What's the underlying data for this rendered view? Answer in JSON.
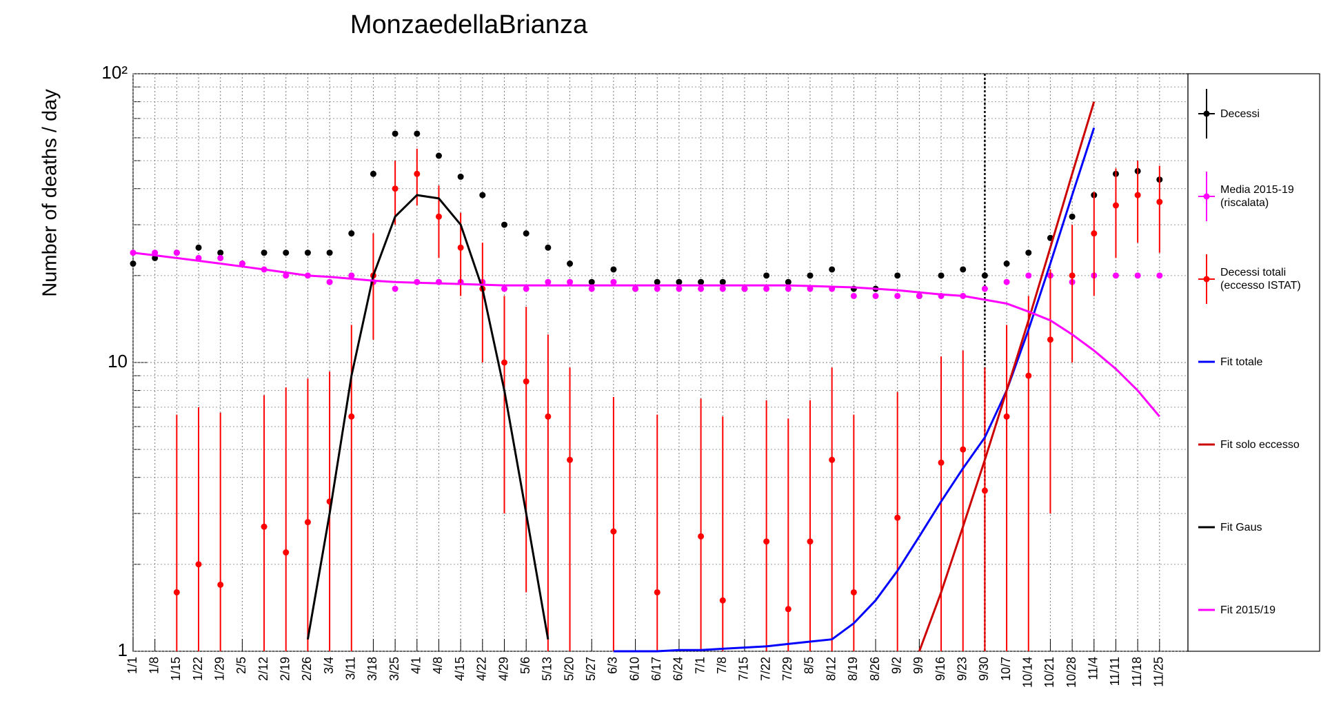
{
  "chart_data": {
    "type": "line",
    "title": "MonzaedellaBrianza",
    "y_label": "Number of deaths / day",
    "y_log": true,
    "grid": true,
    "ylim": [
      1,
      100
    ],
    "yticks": [
      1,
      10,
      {
        "value": 100,
        "label": "10²"
      }
    ],
    "yminorticks": [
      2,
      3,
      4,
      5,
      6,
      7,
      8,
      9,
      20,
      30,
      40,
      50,
      60,
      70,
      80,
      90
    ],
    "marker_line": "9/30",
    "legend": "right",
    "categories": [
      "1/1",
      "1/8",
      "1/15",
      "1/22",
      "1/29",
      "2/5",
      "2/12",
      "2/19",
      "2/26",
      "3/4",
      "3/11",
      "3/18",
      "3/25",
      "4/1",
      "4/8",
      "4/15",
      "4/22",
      "4/29",
      "5/6",
      "5/13",
      "5/20",
      "5/27",
      "6/3",
      "6/10",
      "6/17",
      "6/24",
      "7/1",
      "7/8",
      "7/15",
      "7/22",
      "7/29",
      "8/5",
      "8/12",
      "8/19",
      "8/26",
      "9/2",
      "9/9",
      "9/16",
      "9/23",
      "9/30",
      "10/7",
      "10/14",
      "10/21",
      "10/28",
      "11/4",
      "11/11",
      "11/18",
      "11/25"
    ],
    "series": [
      {
        "name": "Decessi",
        "color": "#000000",
        "style": "markers",
        "values": [
          22,
          23,
          24,
          25,
          24,
          22,
          24,
          24,
          24,
          24,
          28,
          45,
          62,
          62,
          52,
          44,
          38,
          30,
          28,
          25,
          22,
          19,
          21,
          18,
          19,
          19,
          19,
          19,
          18,
          20,
          19,
          20,
          21,
          18,
          18,
          20,
          17,
          20,
          21,
          20,
          22,
          24,
          27,
          32,
          38,
          45,
          46,
          43
        ]
      },
      {
        "name": "Media 2015-19 (riscalata)",
        "color": "#ff00ff",
        "style": "markers",
        "values": [
          24,
          24,
          24,
          23,
          23,
          22,
          21,
          20,
          20,
          19,
          20,
          19,
          18,
          19,
          19,
          19,
          19,
          18,
          18,
          19,
          19,
          18,
          19,
          18,
          18,
          18,
          18,
          18,
          18,
          18,
          18,
          18,
          18,
          17,
          17,
          17,
          17,
          17,
          17,
          18,
          19,
          20,
          20,
          19,
          20,
          20,
          20,
          20
        ]
      },
      {
        "name": "Decessi totali (eccesso ISTAT)",
        "color": "#ff0000",
        "style": "markers",
        "values": [
          null,
          null,
          1.6,
          2.0,
          1.7,
          null,
          2.7,
          2.2,
          2.8,
          3.3,
          6.5,
          20,
          40,
          45,
          32,
          25,
          18,
          10,
          8.6,
          6.5,
          4.6,
          null,
          2.6,
          null,
          1.6,
          null,
          2.5,
          1.5,
          null,
          2.4,
          1.4,
          2.4,
          4.6,
          1.6,
          null,
          2.9,
          null,
          4.5,
          5.0,
          3.6,
          6.5,
          9,
          12,
          20,
          28,
          35,
          38,
          36
        ],
        "errors": [
          null,
          null,
          5,
          5,
          5,
          null,
          5,
          6,
          6,
          6,
          7,
          8,
          10,
          10,
          9,
          8,
          8,
          7,
          7,
          6,
          5,
          null,
          5,
          null,
          5,
          null,
          5,
          5,
          null,
          5,
          5,
          5,
          5,
          5,
          null,
          5,
          null,
          6,
          6,
          6,
          7,
          8,
          9,
          10,
          11,
          12,
          12,
          12
        ]
      },
      {
        "name": "Fit totale",
        "color": "#0000ff",
        "style": "line",
        "values": [
          null,
          null,
          null,
          null,
          null,
          null,
          null,
          null,
          null,
          null,
          null,
          null,
          null,
          null,
          null,
          null,
          null,
          null,
          null,
          null,
          null,
          null,
          1.0,
          1.0,
          1.0,
          1.01,
          1.01,
          1.02,
          1.03,
          1.04,
          1.06,
          1.08,
          1.1,
          1.25,
          1.5,
          1.9,
          2.5,
          3.3,
          4.3,
          5.5,
          8,
          13,
          22,
          38,
          65,
          null,
          null,
          null
        ]
      },
      {
        "name": "Fit solo eccesso",
        "color": "#cc0000",
        "style": "line",
        "values": [
          null,
          null,
          null,
          null,
          null,
          null,
          null,
          null,
          null,
          null,
          null,
          null,
          null,
          null,
          null,
          null,
          null,
          null,
          null,
          null,
          null,
          null,
          null,
          null,
          null,
          null,
          null,
          null,
          null,
          null,
          null,
          null,
          null,
          null,
          null,
          null,
          1.0,
          1.6,
          2.7,
          4.6,
          8,
          14,
          25,
          45,
          80,
          null,
          null,
          null
        ]
      },
      {
        "name": "Fit Gaus",
        "color": "#000000",
        "style": "line",
        "values": [
          null,
          null,
          null,
          null,
          null,
          null,
          null,
          null,
          1.1,
          3,
          9,
          20,
          32,
          38,
          37,
          30,
          18,
          8,
          3,
          1.1,
          null,
          null,
          null,
          null,
          null,
          null,
          null,
          null,
          null,
          null,
          null,
          null,
          null,
          null,
          null,
          null,
          null,
          null,
          null,
          null,
          null,
          null,
          null,
          null,
          null,
          null,
          null,
          null
        ]
      },
      {
        "name": "Fit 2015/19",
        "color": "#ff00ff",
        "style": "line",
        "values": [
          24,
          23.5,
          23,
          22.5,
          22,
          21.5,
          21,
          20.5,
          20,
          19.8,
          19.5,
          19.2,
          19,
          18.9,
          18.8,
          18.7,
          18.6,
          18.5,
          18.5,
          18.5,
          18.5,
          18.5,
          18.5,
          18.5,
          18.5,
          18.5,
          18.5,
          18.5,
          18.5,
          18.5,
          18.5,
          18.4,
          18.3,
          18.2,
          18,
          17.8,
          17.5,
          17.2,
          17,
          16.5,
          16,
          15,
          14,
          12.5,
          11,
          9.5,
          8,
          6.5
        ]
      }
    ]
  }
}
